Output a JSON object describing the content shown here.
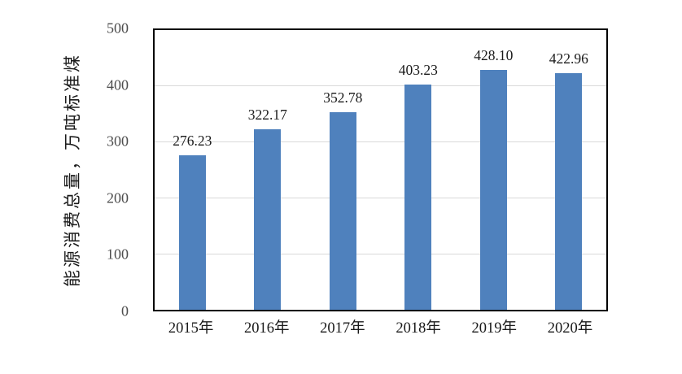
{
  "chart_data": {
    "type": "bar",
    "categories": [
      "2015年",
      "2016年",
      "2017年",
      "2018年",
      "2019年",
      "2020年"
    ],
    "values": [
      276.23,
      322.17,
      352.78,
      403.23,
      428.1,
      422.96
    ],
    "value_labels": [
      "276.23",
      "322.17",
      "352.78",
      "403.23",
      "428.10",
      "422.96"
    ],
    "title": "",
    "xlabel": "",
    "ylabel": "能源消费总量，万吨标准煤",
    "ylim": [
      0,
      500
    ],
    "yticks": [
      0,
      100,
      200,
      300,
      400,
      500
    ],
    "grid": true,
    "legend": "none",
    "bar_color": "#4F81BD",
    "gridline_color": "#D9D9D9",
    "plot_border_color": "#000000",
    "tick_label_color": "#4d4d4d",
    "label_color": "#1a1a1a"
  }
}
